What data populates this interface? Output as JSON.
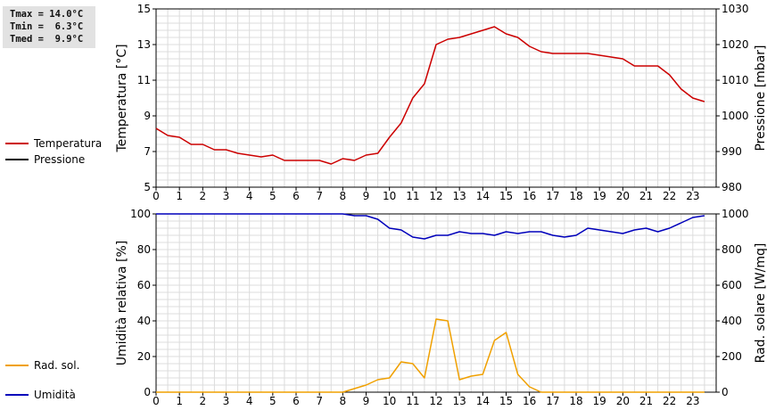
{
  "stats": {
    "tmax": "Tmax = 14.0°C",
    "tmin": "Tmin =  6.3°C",
    "tmed": "Tmed =  9.9°C"
  },
  "colors": {
    "temperatura": "#cc0000",
    "pressione": "#000000",
    "umidita": "#0000bb",
    "rad_sol": "#f0a000",
    "grid": "#dcdcdc"
  },
  "legend_top": [
    {
      "label": "Temperatura",
      "color": "#cc0000"
    },
    {
      "label": "Pressione",
      "color": "#000000"
    }
  ],
  "legend_bottom": [
    {
      "label": "Umidità",
      "color": "#0000bb"
    },
    {
      "label": "Rad. sol.",
      "color": "#f0a000"
    }
  ],
  "chart_data": [
    {
      "type": "line",
      "ylabel": "Temperatura [°C]",
      "y2label": "Pressione [mbar]",
      "xlim": [
        0,
        24
      ],
      "ylim": [
        5,
        15
      ],
      "y2lim": [
        980,
        1030
      ],
      "xticks": [
        "0",
        "1",
        "2",
        "3",
        "4",
        "5",
        "6",
        "7",
        "8",
        "9",
        "10",
        "11",
        "12",
        "13",
        "14",
        "15",
        "16",
        "17",
        "18",
        "19",
        "20",
        "21",
        "22",
        "23"
      ],
      "yticks": [
        "5",
        "7",
        "9",
        "11",
        "13",
        "15"
      ],
      "y2ticks": [
        "980",
        "990",
        "1000",
        "1010",
        "1020",
        "1030"
      ],
      "grid": true,
      "series": [
        {
          "name": "Temperatura",
          "color": "#cc0000",
          "x": [
            0,
            0.5,
            1,
            1.5,
            2,
            2.5,
            3,
            3.5,
            4,
            4.5,
            5,
            5.5,
            6,
            6.5,
            7,
            7.5,
            8,
            8.5,
            9,
            9.5,
            10,
            10.5,
            11,
            11.5,
            12,
            12.5,
            13,
            13.5,
            14,
            14.5,
            15,
            15.5,
            16,
            16.5,
            17,
            17.5,
            18,
            18.5,
            19,
            19.5,
            20,
            20.5,
            21,
            21.5,
            22,
            22.5,
            23,
            23.5
          ],
          "y": [
            8.3,
            7.9,
            7.8,
            7.4,
            7.4,
            7.1,
            7.1,
            6.9,
            6.8,
            6.7,
            6.8,
            6.5,
            6.5,
            6.5,
            6.5,
            6.3,
            6.6,
            6.5,
            6.8,
            6.9,
            7.8,
            8.6,
            10.0,
            10.8,
            13.0,
            13.3,
            13.4,
            13.6,
            13.8,
            14.0,
            13.6,
            13.4,
            12.9,
            12.6,
            12.5,
            12.5,
            12.5,
            12.5,
            12.4,
            12.3,
            12.2,
            11.8,
            11.8,
            11.8,
            11.3,
            10.5,
            10.0,
            9.8
          ]
        }
      ]
    },
    {
      "type": "line",
      "ylabel": "Umidità relativa [%]",
      "y2label": "Rad. solare [W/mq]",
      "xlim": [
        0,
        24
      ],
      "ylim": [
        0,
        100
      ],
      "y2lim": [
        0,
        1000
      ],
      "xticks": [
        "0",
        "1",
        "2",
        "3",
        "4",
        "5",
        "6",
        "7",
        "8",
        "9",
        "10",
        "11",
        "12",
        "13",
        "14",
        "15",
        "16",
        "17",
        "18",
        "19",
        "20",
        "21",
        "22",
        "23"
      ],
      "yticks": [
        "0",
        "20",
        "40",
        "60",
        "80",
        "100"
      ],
      "y2ticks": [
        "0",
        "200",
        "400",
        "600",
        "800",
        "1000"
      ],
      "grid": true,
      "series": [
        {
          "name": "Umidità",
          "color": "#0000bb",
          "x": [
            0,
            1,
            2,
            3,
            4,
            5,
            6,
            7,
            8,
            8.5,
            9,
            9.5,
            10,
            10.5,
            11,
            11.5,
            12,
            12.5,
            13,
            13.5,
            14,
            14.5,
            15,
            15.5,
            16,
            16.5,
            17,
            17.5,
            18,
            18.5,
            19,
            19.5,
            20,
            20.5,
            21,
            21.5,
            22,
            22.5,
            23,
            23.5
          ],
          "y": [
            100,
            100,
            100,
            100,
            100,
            100,
            100,
            100,
            100,
            99,
            99,
            97,
            92,
            91,
            87,
            86,
            88,
            88,
            90,
            89,
            89,
            88,
            90,
            89,
            90,
            90,
            88,
            87,
            88,
            92,
            91,
            90,
            89,
            91,
            92,
            90,
            92,
            95,
            98,
            99
          ]
        },
        {
          "name": "Rad. sol.",
          "color": "#f0a000",
          "axis": "right",
          "x": [
            0,
            1,
            2,
            3,
            4,
            5,
            6,
            7,
            8,
            8.5,
            9,
            9.5,
            10,
            10.5,
            11,
            11.5,
            12,
            12.5,
            13,
            13.5,
            14,
            14.5,
            15,
            15.5,
            16,
            16.5,
            17,
            18,
            19,
            20,
            21,
            22,
            23,
            23.5
          ],
          "y": [
            0,
            0,
            0,
            0,
            0,
            0,
            0,
            0,
            0,
            20,
            40,
            70,
            80,
            170,
            160,
            80,
            410,
            400,
            70,
            90,
            100,
            290,
            335,
            100,
            30,
            0,
            0,
            0,
            0,
            0,
            0,
            0,
            0,
            0
          ]
        }
      ]
    }
  ]
}
